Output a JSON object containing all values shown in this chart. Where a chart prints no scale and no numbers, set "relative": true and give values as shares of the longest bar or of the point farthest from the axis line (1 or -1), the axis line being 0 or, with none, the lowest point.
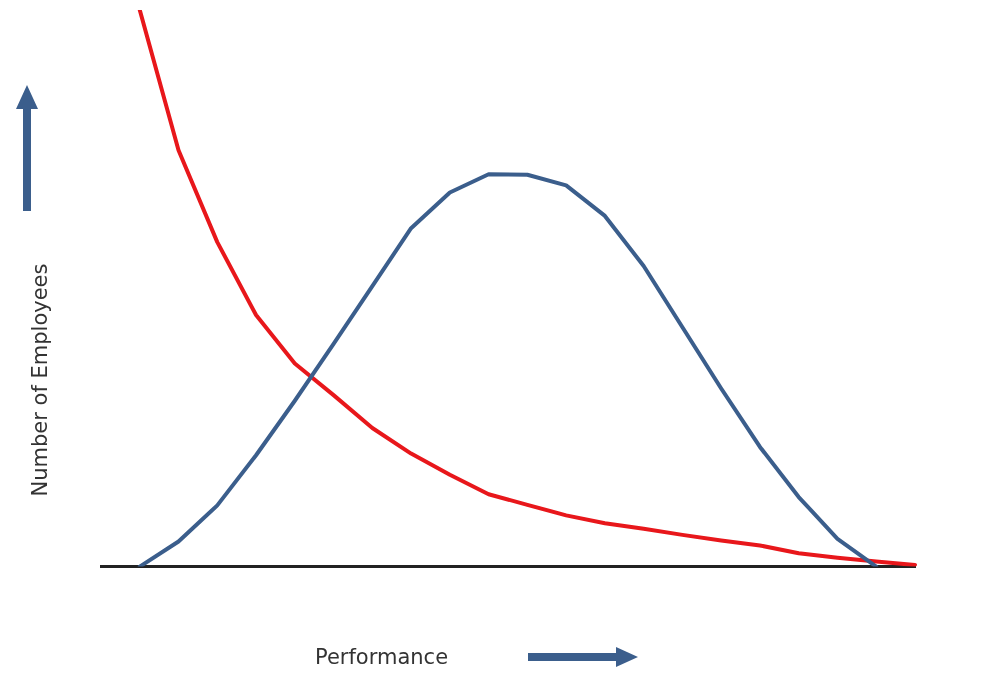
{
  "chart_data": {
    "type": "line",
    "xlabel": "Performance",
    "ylabel": "Number of Employees",
    "relative": true,
    "marker": "none",
    "line_style": "solid",
    "legend": false,
    "categories": [
      null,
      null,
      null,
      null,
      null,
      null,
      null,
      null,
      null,
      null,
      null,
      null,
      null,
      null,
      null,
      null,
      null,
      null,
      null,
      null,
      null,
      null
    ],
    "series": [
      {
        "color": "#3b5e8c",
        "values": [
          null,
          0,
          0.045,
          0.11,
          0.2,
          0.298,
          0.4,
          0.504,
          0.608,
          0.672,
          0.705,
          0.704,
          0.685,
          0.63,
          0.54,
          0.43,
          0.32,
          0.215,
          0.125,
          0.05,
          0,
          null
        ]
      },
      {
        "color": "#e8171b",
        "values": [
          null,
          1,
          0.748,
          0.583,
          0.452,
          0.365,
          0.308,
          0.249,
          0.203,
          0.165,
          0.13,
          0.111,
          0.092,
          0.078,
          0.068,
          0.057,
          0.047,
          0.038,
          0.024,
          0.016,
          0.009,
          0.003
        ]
      }
    ]
  }
}
